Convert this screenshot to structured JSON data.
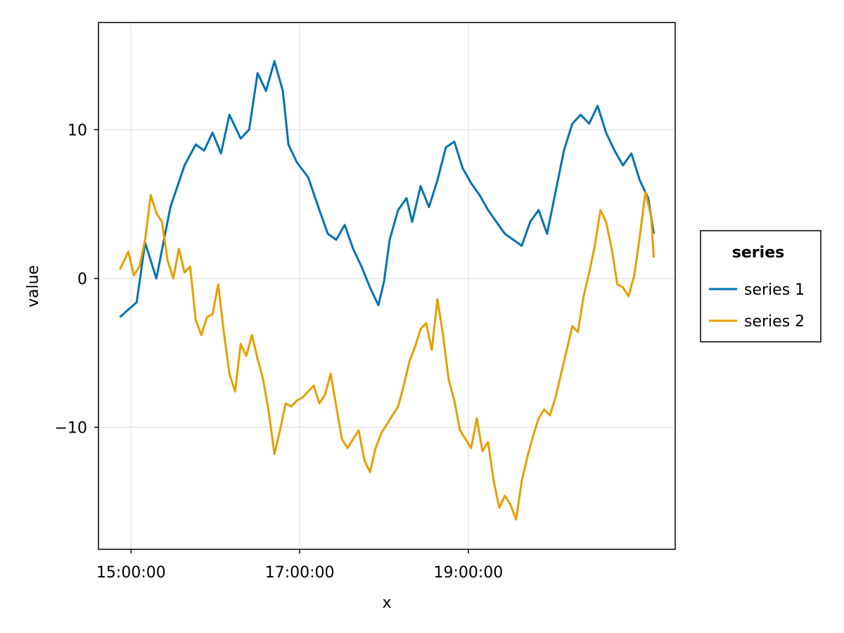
{
  "chart_data": {
    "type": "line",
    "title": "",
    "xlabel": "x",
    "ylabel": "value",
    "x_start": "14:52:00",
    "x_end": "21:12:00",
    "x_ticks": [
      "15:00:00",
      "17:00:00",
      "19:00:00"
    ],
    "y_ticks": [
      -10,
      0,
      10
    ],
    "ylim": [
      -18.2,
      17.2
    ],
    "grid": true,
    "legend": {
      "title": "series",
      "placement": "right"
    },
    "colors": {
      "series 1": "#0072b2",
      "series 2": "#e69f00"
    },
    "series": [
      {
        "name": "series 1",
        "color": "#0072b2",
        "points": [
          [
            "14:52:00",
            -2.6
          ],
          [
            "15:04:00",
            -1.6
          ],
          [
            "15:10:00",
            2.4
          ],
          [
            "15:18:00",
            0.0
          ],
          [
            "15:28:00",
            4.8
          ],
          [
            "15:38:00",
            7.6
          ],
          [
            "15:46:00",
            9.0
          ],
          [
            "15:52:00",
            8.6
          ],
          [
            "15:58:00",
            9.8
          ],
          [
            "16:04:00",
            8.4
          ],
          [
            "16:10:00",
            11.0
          ],
          [
            "16:18:00",
            9.4
          ],
          [
            "16:24:00",
            10.0
          ],
          [
            "16:30:00",
            13.8
          ],
          [
            "16:36:00",
            12.6
          ],
          [
            "16:42:00",
            14.6
          ],
          [
            "16:48:00",
            12.6
          ],
          [
            "16:52:00",
            9.0
          ],
          [
            "16:58:00",
            7.8
          ],
          [
            "17:06:00",
            6.8
          ],
          [
            "17:14:00",
            4.6
          ],
          [
            "17:20:00",
            3.0
          ],
          [
            "17:26:00",
            2.6
          ],
          [
            "17:32:00",
            3.6
          ],
          [
            "17:38:00",
            2.0
          ],
          [
            "17:44:00",
            0.8
          ],
          [
            "17:50:00",
            -0.6
          ],
          [
            "17:56:00",
            -1.8
          ],
          [
            "18:00:00",
            -0.2
          ],
          [
            "18:04:00",
            2.6
          ],
          [
            "18:10:00",
            4.6
          ],
          [
            "18:16:00",
            5.4
          ],
          [
            "18:20:00",
            3.8
          ],
          [
            "18:26:00",
            6.2
          ],
          [
            "18:32:00",
            4.8
          ],
          [
            "18:38:00",
            6.6
          ],
          [
            "18:44:00",
            8.8
          ],
          [
            "18:50:00",
            9.2
          ],
          [
            "18:56:00",
            7.4
          ],
          [
            "19:02:00",
            6.4
          ],
          [
            "19:08:00",
            5.6
          ],
          [
            "19:14:00",
            4.6
          ],
          [
            "19:20:00",
            3.8
          ],
          [
            "19:26:00",
            3.0
          ],
          [
            "19:32:00",
            2.6
          ],
          [
            "19:38:00",
            2.2
          ],
          [
            "19:44:00",
            3.8
          ],
          [
            "19:50:00",
            4.6
          ],
          [
            "19:56:00",
            3.0
          ],
          [
            "20:02:00",
            5.8
          ],
          [
            "20:08:00",
            8.6
          ],
          [
            "20:14:00",
            10.4
          ],
          [
            "20:20:00",
            11.0
          ],
          [
            "20:26:00",
            10.4
          ],
          [
            "20:32:00",
            11.6
          ],
          [
            "20:38:00",
            9.8
          ],
          [
            "20:44:00",
            8.6
          ],
          [
            "20:50:00",
            7.6
          ],
          [
            "20:56:00",
            8.4
          ],
          [
            "21:02:00",
            6.6
          ],
          [
            "21:08:00",
            5.4
          ],
          [
            "21:12:00",
            3.0
          ]
        ]
      },
      {
        "name": "series 2",
        "color": "#e69f00",
        "points": [
          [
            "14:52:00",
            0.6
          ],
          [
            "14:58:00",
            1.8
          ],
          [
            "15:02:00",
            0.2
          ],
          [
            "15:06:00",
            0.8
          ],
          [
            "15:10:00",
            2.6
          ],
          [
            "15:14:00",
            5.6
          ],
          [
            "15:18:00",
            4.4
          ],
          [
            "15:22:00",
            3.8
          ],
          [
            "15:26:00",
            1.2
          ],
          [
            "15:30:00",
            0.0
          ],
          [
            "15:34:00",
            2.0
          ],
          [
            "15:38:00",
            0.4
          ],
          [
            "15:42:00",
            0.8
          ],
          [
            "15:46:00",
            -2.8
          ],
          [
            "15:50:00",
            -3.8
          ],
          [
            "15:54:00",
            -2.6
          ],
          [
            "15:58:00",
            -2.4
          ],
          [
            "16:02:00",
            -0.4
          ],
          [
            "16:06:00",
            -3.6
          ],
          [
            "16:10:00",
            -6.4
          ],
          [
            "16:14:00",
            -7.6
          ],
          [
            "16:18:00",
            -4.4
          ],
          [
            "16:22:00",
            -5.2
          ],
          [
            "16:26:00",
            -3.8
          ],
          [
            "16:30:00",
            -5.4
          ],
          [
            "16:34:00",
            -6.8
          ],
          [
            "16:38:00",
            -9.0
          ],
          [
            "16:42:00",
            -11.8
          ],
          [
            "16:46:00",
            -10.2
          ],
          [
            "16:50:00",
            -8.4
          ],
          [
            "16:54:00",
            -8.6
          ],
          [
            "16:58:00",
            -8.2
          ],
          [
            "17:02:00",
            -8.0
          ],
          [
            "17:06:00",
            -7.6
          ],
          [
            "17:10:00",
            -7.2
          ],
          [
            "17:14:00",
            -8.4
          ],
          [
            "17:18:00",
            -7.8
          ],
          [
            "17:22:00",
            -6.4
          ],
          [
            "17:26:00",
            -8.6
          ],
          [
            "17:30:00",
            -10.8
          ],
          [
            "17:34:00",
            -11.4
          ],
          [
            "17:38:00",
            -10.8
          ],
          [
            "17:42:00",
            -10.2
          ],
          [
            "17:46:00",
            -12.2
          ],
          [
            "17:50:00",
            -13.0
          ],
          [
            "17:54:00",
            -11.4
          ],
          [
            "17:58:00",
            -10.4
          ],
          [
            "18:02:00",
            -9.8
          ],
          [
            "18:06:00",
            -9.2
          ],
          [
            "18:10:00",
            -8.6
          ],
          [
            "18:14:00",
            -7.2
          ],
          [
            "18:18:00",
            -5.6
          ],
          [
            "18:22:00",
            -4.6
          ],
          [
            "18:26:00",
            -3.4
          ],
          [
            "18:30:00",
            -3.0
          ],
          [
            "18:34:00",
            -4.8
          ],
          [
            "18:38:00",
            -1.4
          ],
          [
            "18:42:00",
            -3.8
          ],
          [
            "18:46:00",
            -6.8
          ],
          [
            "18:50:00",
            -8.2
          ],
          [
            "18:54:00",
            -10.2
          ],
          [
            "18:58:00",
            -10.8
          ],
          [
            "19:02:00",
            -11.4
          ],
          [
            "19:06:00",
            -9.4
          ],
          [
            "19:10:00",
            -11.6
          ],
          [
            "19:14:00",
            -11.0
          ],
          [
            "19:18:00",
            -13.6
          ],
          [
            "19:22:00",
            -15.4
          ],
          [
            "19:26:00",
            -14.6
          ],
          [
            "19:30:00",
            -15.2
          ],
          [
            "19:34:00",
            -16.2
          ],
          [
            "19:38:00",
            -13.6
          ],
          [
            "19:42:00",
            -12.0
          ],
          [
            "19:46:00",
            -10.6
          ],
          [
            "19:50:00",
            -9.4
          ],
          [
            "19:54:00",
            -8.8
          ],
          [
            "19:58:00",
            -9.2
          ],
          [
            "20:02:00",
            -8.0
          ],
          [
            "20:06:00",
            -6.4
          ],
          [
            "20:10:00",
            -4.8
          ],
          [
            "20:14:00",
            -3.2
          ],
          [
            "20:18:00",
            -3.6
          ],
          [
            "20:22:00",
            -1.2
          ],
          [
            "20:26:00",
            0.4
          ],
          [
            "20:30:00",
            2.2
          ],
          [
            "20:34:00",
            4.6
          ],
          [
            "20:38:00",
            3.8
          ],
          [
            "20:42:00",
            2.0
          ],
          [
            "20:46:00",
            -0.4
          ],
          [
            "20:50:00",
            -0.6
          ],
          [
            "20:54:00",
            -1.2
          ],
          [
            "20:58:00",
            0.2
          ],
          [
            "21:02:00",
            2.8
          ],
          [
            "21:06:00",
            5.8
          ],
          [
            "21:10:00",
            4.2
          ],
          [
            "21:12:00",
            1.4
          ]
        ]
      }
    ]
  }
}
